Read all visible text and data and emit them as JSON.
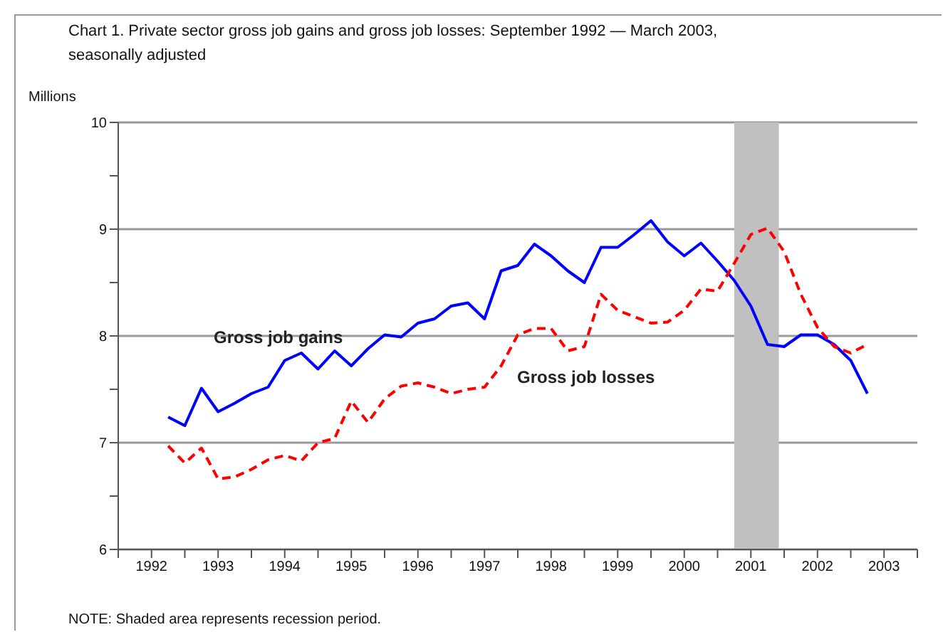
{
  "chart_data": {
    "type": "line",
    "title": "Chart 1. Private sector gross job gains and gross job losses: September 1992 — March 2003, seasonally adjusted",
    "ylabel": "Millions",
    "x": [
      1992.75,
      1993,
      1993.25,
      1993.5,
      1993.75,
      1994,
      1994.25,
      1994.5,
      1994.75,
      1995,
      1995.25,
      1995.5,
      1995.75,
      1996,
      1996.25,
      1996.5,
      1996.75,
      1997,
      1997.25,
      1997.5,
      1997.75,
      1998,
      1998.25,
      1998.5,
      1998.75,
      1999,
      1999.25,
      1999.5,
      1999.75,
      2000,
      2000.25,
      2000.5,
      2000.75,
      2001,
      2001.25,
      2001.5,
      2001.75,
      2002,
      2002.25,
      2002.5,
      2002.75,
      2003,
      2003.25
    ],
    "series": [
      {
        "name": "Gross job gains",
        "color": "#0000ff",
        "line_style": "solid",
        "values": [
          7.24,
          7.16,
          7.51,
          7.29,
          7.37,
          7.46,
          7.52,
          7.77,
          7.84,
          7.69,
          7.86,
          7.72,
          7.88,
          8.01,
          7.99,
          8.12,
          8.16,
          8.28,
          8.31,
          8.16,
          8.61,
          8.66,
          8.86,
          8.75,
          8.61,
          8.5,
          8.83,
          8.83,
          8.95,
          9.08,
          8.88,
          8.75,
          8.87,
          8.7,
          8.52,
          8.28,
          7.92,
          7.9,
          8.01,
          8.01,
          7.92,
          7.77,
          7.46
        ]
      },
      {
        "name": "Gross job losses",
        "color": "#ff0000",
        "line_style": "dashed",
        "values": [
          6.97,
          6.81,
          6.95,
          6.66,
          6.68,
          6.75,
          6.84,
          6.88,
          6.83,
          7.0,
          7.04,
          7.39,
          7.19,
          7.41,
          7.53,
          7.56,
          7.52,
          7.46,
          7.5,
          7.52,
          7.72,
          8.01,
          8.07,
          8.07,
          7.86,
          7.9,
          8.39,
          8.24,
          8.18,
          8.12,
          8.13,
          8.24,
          8.44,
          8.42,
          8.68,
          8.95,
          9.01,
          8.79,
          8.39,
          8.08,
          7.9,
          7.84,
          7.92
        ]
      }
    ],
    "xlim": [
      1992,
      2004
    ],
    "xticks": [
      {
        "value": 1992,
        "label": null
      },
      {
        "value": 1992.5,
        "label": "1992"
      },
      {
        "value": 1993,
        "label": null
      },
      {
        "value": 1993.5,
        "label": "1993"
      },
      {
        "value": 1994,
        "label": null
      },
      {
        "value": 1994.5,
        "label": "1994"
      },
      {
        "value": 1995,
        "label": null
      },
      {
        "value": 1995.5,
        "label": "1995"
      },
      {
        "value": 1996,
        "label": null
      },
      {
        "value": 1996.5,
        "label": "1996"
      },
      {
        "value": 1997,
        "label": null
      },
      {
        "value": 1997.5,
        "label": "1997"
      },
      {
        "value": 1998,
        "label": null
      },
      {
        "value": 1998.5,
        "label": "1998"
      },
      {
        "value": 1999,
        "label": null
      },
      {
        "value": 1999.5,
        "label": "1999"
      },
      {
        "value": 2000,
        "label": null
      },
      {
        "value": 2000.5,
        "label": "2000"
      },
      {
        "value": 2001,
        "label": null
      },
      {
        "value": 2001.5,
        "label": "2001"
      },
      {
        "value": 2002,
        "label": null
      },
      {
        "value": 2002.5,
        "label": "2002"
      },
      {
        "value": 2003,
        "label": null
      },
      {
        "value": 2003.5,
        "label": "2003"
      },
      {
        "value": 2004,
        "label": null
      }
    ],
    "ylim": [
      6,
      10
    ],
    "yticks": [
      6,
      {
        "value": 6.5,
        "label": null
      },
      7,
      {
        "value": 7.5,
        "label": null
      },
      8,
      {
        "value": 8.5,
        "label": null
      },
      9,
      {
        "value": 9.5,
        "label": null
      },
      10
    ],
    "grid": "y",
    "marker": "none",
    "bands": [
      {
        "axis": "x",
        "from": 2001.25,
        "to": 2001.92,
        "color": "#c0c0c0"
      }
    ],
    "annotations": [
      "NOTE: Shaded area represents recession period."
    ]
  }
}
